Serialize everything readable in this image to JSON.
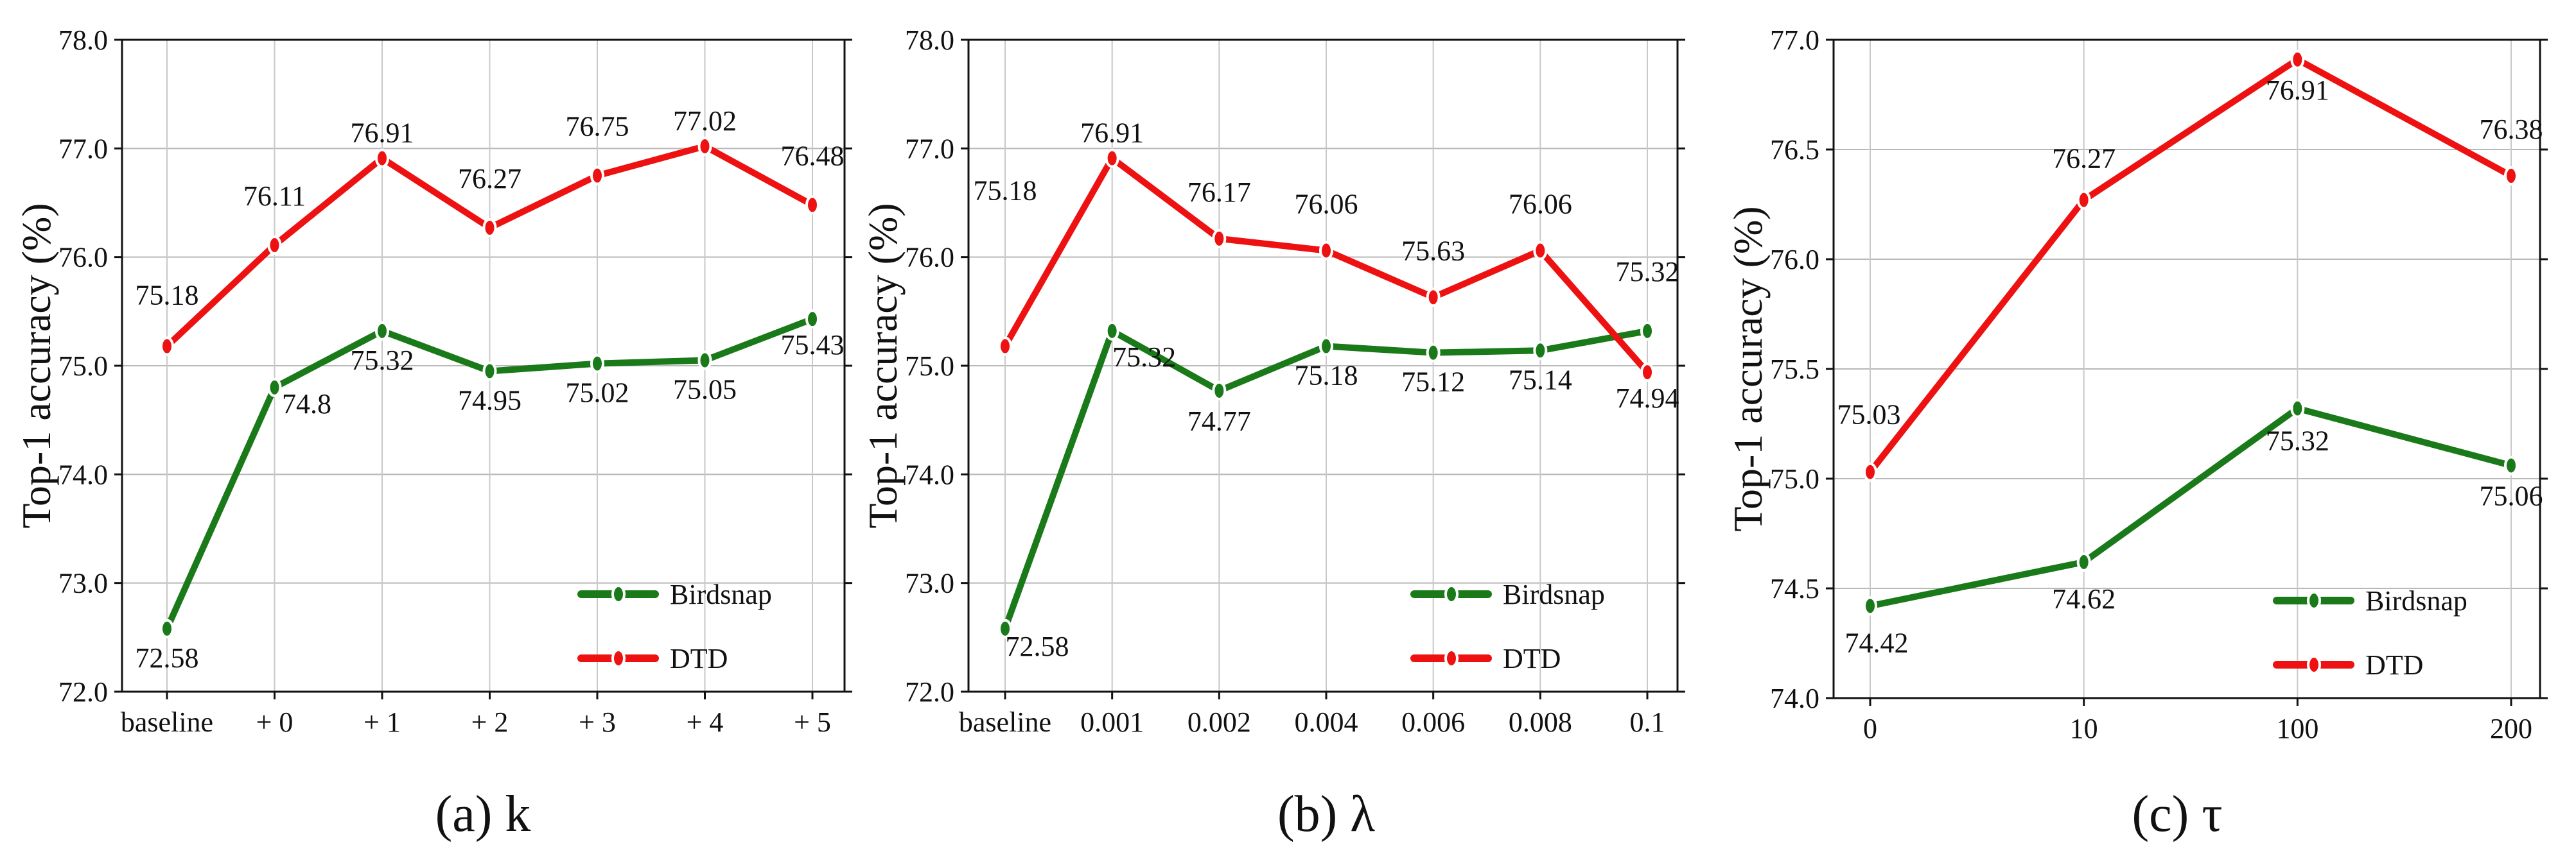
{
  "chart_data": [
    {
      "type": "line",
      "caption": "(a) k",
      "ylabel": "Top-1 accuracy (%)",
      "categories": [
        "baseline",
        "+ 0",
        "+ 1",
        "+ 2",
        "+ 3",
        "+ 4",
        "+ 5"
      ],
      "ylim": [
        72.0,
        78.0
      ],
      "yticks": [
        "72.0",
        "73.0",
        "74.0",
        "75.0",
        "76.0",
        "77.0",
        "78.0"
      ],
      "grid": true,
      "legend_position": "bottom-right",
      "series": [
        {
          "name": "Birdsnap",
          "color": "#1a7a1a",
          "values": [
            72.58,
            74.8,
            75.32,
            74.95,
            75.02,
            75.05,
            75.43
          ],
          "labels": [
            "72.58",
            "74.8",
            "75.32",
            "74.95",
            "75.02",
            "75.05",
            "75.43"
          ]
        },
        {
          "name": "DTD",
          "color": "#ee1111",
          "values": [
            75.18,
            76.11,
            76.91,
            76.27,
            76.75,
            77.02,
            76.48
          ],
          "labels": [
            "75.18",
            "76.11",
            "76.91",
            "76.27",
            "76.75",
            "77.02",
            "76.48"
          ]
        }
      ]
    },
    {
      "type": "line",
      "caption": "(b) λ",
      "ylabel": "Top-1 accuracy (%)",
      "categories": [
        "baseline",
        "0.001",
        "0.002",
        "0.004",
        "0.006",
        "0.008",
        "0.1"
      ],
      "ylim": [
        72.0,
        78.0
      ],
      "yticks": [
        "72.0",
        "73.0",
        "74.0",
        "75.0",
        "76.0",
        "77.0",
        "78.0"
      ],
      "grid": true,
      "legend_position": "bottom-right",
      "series": [
        {
          "name": "Birdsnap",
          "color": "#1a7a1a",
          "values": [
            72.58,
            75.32,
            74.77,
            75.18,
            75.12,
            75.14,
            75.32
          ],
          "labels": [
            "72.58",
            "75.32",
            "74.77",
            "75.18",
            "75.12",
            "75.14",
            "75.32"
          ]
        },
        {
          "name": "DTD",
          "color": "#ee1111",
          "values": [
            75.18,
            76.91,
            76.17,
            76.06,
            75.63,
            76.06,
            74.94
          ],
          "labels": [
            "75.18",
            "76.91",
            "76.17",
            "76.06",
            "75.63",
            "76.06",
            "74.94"
          ]
        }
      ]
    },
    {
      "type": "line",
      "caption": "(c) τ",
      "ylabel": "Top-1 accuracy (%)",
      "categories": [
        "0",
        "10",
        "100",
        "200"
      ],
      "ylim": [
        74.0,
        77.0
      ],
      "yticks": [
        "74.0",
        "74.5",
        "75.0",
        "75.5",
        "76.0",
        "76.5",
        "77.0"
      ],
      "grid": true,
      "legend_position": "bottom-right",
      "series": [
        {
          "name": "Birdsnap",
          "color": "#1a7a1a",
          "values": [
            74.42,
            74.62,
            75.32,
            75.06
          ],
          "labels": [
            "74.42",
            "74.62",
            "75.32",
            "75.06"
          ]
        },
        {
          "name": "DTD",
          "color": "#ee1111",
          "values": [
            75.03,
            76.27,
            76.91,
            76.38
          ],
          "labels": [
            "75.03",
            "76.27",
            "76.91",
            "76.38"
          ]
        }
      ]
    }
  ]
}
